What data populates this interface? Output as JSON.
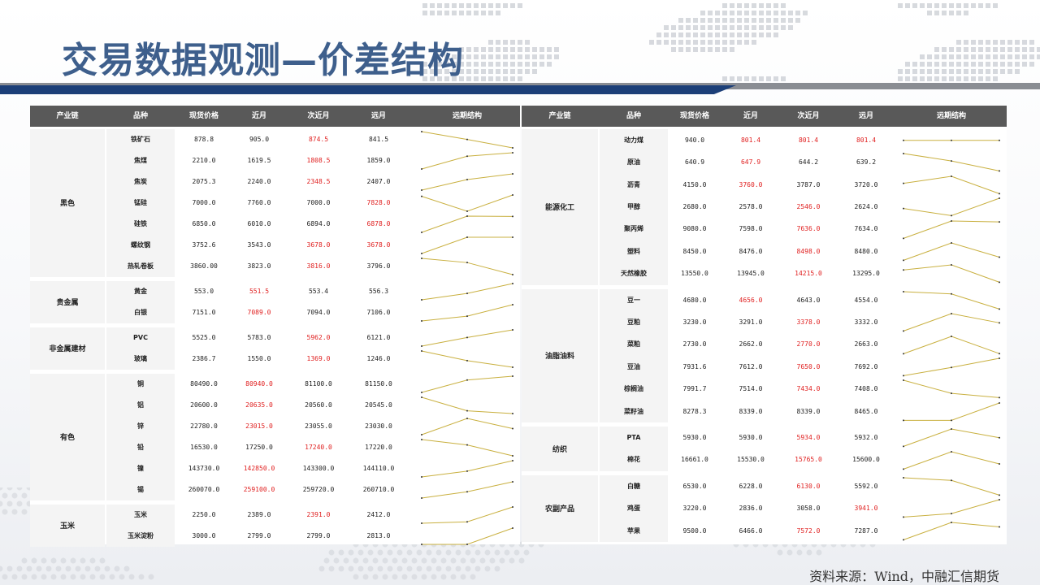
{
  "title": "交易数据观测—价差结构",
  "source": "资料来源：Wind，中融汇信期货",
  "colors": {
    "title": "#3e5f8c",
    "header_bg": "#595959",
    "highlight_red": "#e02020",
    "spark_line": "#c9b040",
    "banner_blue": "#1c3f78"
  },
  "headers": [
    "产业链",
    "品种",
    "现货价格",
    "近月",
    "次近月",
    "远月",
    "远期结构"
  ],
  "left": {
    "groups": [
      {
        "name": "黑色",
        "rows": [
          {
            "item": "铁矿石",
            "spot": "878.8",
            "near": "905.0",
            "next": "874.5",
            "far": "841.5",
            "red": "next"
          },
          {
            "item": "焦煤",
            "spot": "2210.0",
            "near": "1619.5",
            "next": "1808.5",
            "far": "1859.0",
            "red": "next"
          },
          {
            "item": "焦炭",
            "spot": "2075.3",
            "near": "2240.0",
            "next": "2348.5",
            "far": "2407.0",
            "red": "next"
          },
          {
            "item": "锰硅",
            "spot": "7000.0",
            "near": "7760.0",
            "next": "7000.0",
            "far": "7828.0",
            "red": "far"
          },
          {
            "item": "硅铁",
            "spot": "6850.0",
            "near": "6010.0",
            "next": "6894.0",
            "far": "6878.0",
            "red": "far"
          },
          {
            "item": "螺纹钢",
            "spot": "3752.6",
            "near": "3543.0",
            "next": "3678.0",
            "far": "3678.0",
            "red": "next,far"
          },
          {
            "item": "热轧卷板",
            "spot": "3860.00",
            "near": "3823.0",
            "next": "3816.0",
            "far": "3796.0",
            "red": "next"
          }
        ]
      },
      {
        "name": "贵金属",
        "rows": [
          {
            "item": "黄金",
            "spot": "553.0",
            "near": "551.5",
            "next": "553.4",
            "far": "556.3",
            "red": "near"
          },
          {
            "item": "白银",
            "spot": "7151.0",
            "near": "7089.0",
            "next": "7094.0",
            "far": "7106.0",
            "red": "near"
          }
        ]
      },
      {
        "name": "非金属建材",
        "rows": [
          {
            "item": "PVC",
            "spot": "5525.0",
            "near": "5783.0",
            "next": "5962.0",
            "far": "6121.0",
            "red": "next"
          },
          {
            "item": "玻璃",
            "spot": "2386.7",
            "near": "1550.0",
            "next": "1369.0",
            "far": "1246.0",
            "red": "next"
          }
        ]
      },
      {
        "name": "有色",
        "rows": [
          {
            "item": "铜",
            "spot": "80490.0",
            "near": "80940.0",
            "next": "81100.0",
            "far": "81150.0",
            "red": "near"
          },
          {
            "item": "铝",
            "spot": "20600.0",
            "near": "20635.0",
            "next": "20560.0",
            "far": "20545.0",
            "red": "near"
          },
          {
            "item": "锌",
            "spot": "22780.0",
            "near": "23015.0",
            "next": "23055.0",
            "far": "23030.0",
            "red": "near"
          },
          {
            "item": "铅",
            "spot": "16530.0",
            "near": "17250.0",
            "next": "17240.0",
            "far": "17220.0",
            "red": "next"
          },
          {
            "item": "镍",
            "spot": "143730.0",
            "near": "142850.0",
            "next": "143300.0",
            "far": "144110.0",
            "red": "near"
          },
          {
            "item": "锡",
            "spot": "260070.0",
            "near": "259100.0",
            "next": "259720.0",
            "far": "260710.0",
            "red": "near"
          }
        ]
      },
      {
        "name": "玉米",
        "rows": [
          {
            "item": "玉米",
            "spot": "2250.0",
            "near": "2389.0",
            "next": "2391.0",
            "far": "2412.0",
            "red": "next"
          },
          {
            "item": "玉米淀粉",
            "spot": "3000.0",
            "near": "2799.0",
            "next": "2799.0",
            "far": "2813.0",
            "red": ""
          }
        ]
      }
    ]
  },
  "right": {
    "groups": [
      {
        "name": "能源化工",
        "rows": [
          {
            "item": "动力煤",
            "spot": "940.0",
            "near": "801.4",
            "next": "801.4",
            "far": "801.4",
            "red": "near,next,far"
          },
          {
            "item": "原油",
            "spot": "640.9",
            "near": "647.9",
            "next": "644.2",
            "far": "639.2",
            "red": "near"
          },
          {
            "item": "沥青",
            "spot": "4150.0",
            "near": "3760.0",
            "next": "3787.0",
            "far": "3720.0",
            "red": "near"
          },
          {
            "item": "甲醇",
            "spot": "2680.0",
            "near": "2578.0",
            "next": "2546.0",
            "far": "2624.0",
            "red": "next"
          },
          {
            "item": "聚丙烯",
            "spot": "9080.0",
            "near": "7598.0",
            "next": "7636.0",
            "far": "7634.0",
            "red": "next"
          },
          {
            "item": "塑料",
            "spot": "8450.0",
            "near": "8476.0",
            "next": "8498.0",
            "far": "8480.0",
            "red": "next"
          },
          {
            "item": "天然橡胶",
            "spot": "13550.0",
            "near": "13945.0",
            "next": "14215.0",
            "far": "13295.0",
            "red": "next"
          }
        ]
      },
      {
        "name": "油脂油料",
        "rows": [
          {
            "item": "豆一",
            "spot": "4680.0",
            "near": "4656.0",
            "next": "4643.0",
            "far": "4554.0",
            "red": "near"
          },
          {
            "item": "豆粕",
            "spot": "3230.0",
            "near": "3291.0",
            "next": "3378.0",
            "far": "3332.0",
            "red": "next"
          },
          {
            "item": "菜粕",
            "spot": "2730.0",
            "near": "2662.0",
            "next": "2770.0",
            "far": "2663.0",
            "red": "next"
          },
          {
            "item": "豆油",
            "spot": "7931.6",
            "near": "7612.0",
            "next": "7650.0",
            "far": "7692.0",
            "red": "next"
          },
          {
            "item": "棕榈油",
            "spot": "7991.7",
            "near": "7514.0",
            "next": "7434.0",
            "far": "7408.0",
            "red": "next"
          },
          {
            "item": "菜籽油",
            "spot": "8278.3",
            "near": "8339.0",
            "next": "8339.0",
            "far": "8465.0",
            "red": ""
          }
        ]
      },
      {
        "name": "纺织",
        "rows": [
          {
            "item": "PTA",
            "spot": "5930.0",
            "near": "5930.0",
            "next": "5934.0",
            "far": "5932.0",
            "red": "next"
          },
          {
            "item": "棉花",
            "spot": "16661.0",
            "near": "15530.0",
            "next": "15765.0",
            "far": "15600.0",
            "red": "next"
          }
        ]
      },
      {
        "name": "农副产品",
        "rows": [
          {
            "item": "白糖",
            "spot": "6530.0",
            "near": "6228.0",
            "next": "6130.0",
            "far": "5592.0",
            "red": "next"
          },
          {
            "item": "鸡蛋",
            "spot": "3220.0",
            "near": "2836.0",
            "next": "3058.0",
            "far": "3941.0",
            "red": "far"
          },
          {
            "item": "苹果",
            "spot": "9500.0",
            "near": "6466.0",
            "next": "7572.0",
            "far": "7287.0",
            "red": "next"
          }
        ]
      }
    ]
  }
}
